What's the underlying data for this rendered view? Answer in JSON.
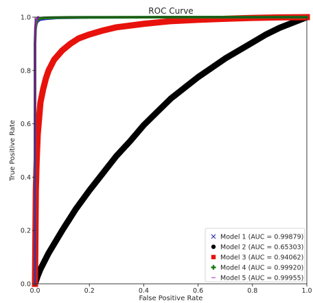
{
  "chart_data": {
    "type": "line",
    "title": "ROC Curve",
    "xlabel": "False Positive Rate",
    "ylabel": "True Positive Rate",
    "xlim": [
      0.0,
      1.0
    ],
    "ylim": [
      0.0,
      1.0
    ],
    "xticks": [
      "0.0",
      "0.2",
      "0.4",
      "0.6",
      "0.8",
      "1.0"
    ],
    "yticks": [
      "0.0",
      "0.2",
      "0.4",
      "0.6",
      "0.8",
      "1.0"
    ],
    "grid": false,
    "legend_position": "lower-right",
    "series": [
      {
        "name": "Model 1 (AUC = 0.99879)",
        "marker": "x",
        "color": "#2d2db8",
        "x": [
          0,
          0,
          0,
          0,
          0.002,
          0.005,
          0.008,
          0.012,
          0.02,
          0.04,
          0.08,
          0.2,
          0.5,
          1.0
        ],
        "y": [
          0,
          0.4,
          0.8,
          0.9,
          0.95,
          0.97,
          0.98,
          0.985,
          0.99,
          0.993,
          0.996,
          0.998,
          0.999,
          1.0
        ]
      },
      {
        "name": "Model 2 (AUC = 0.65303)",
        "marker": "circle",
        "color": "#000000",
        "x": [
          0,
          0.01,
          0.02,
          0.05,
          0.1,
          0.15,
          0.2,
          0.25,
          0.3,
          0.35,
          0.4,
          0.45,
          0.5,
          0.55,
          0.6,
          0.65,
          0.7,
          0.75,
          0.8,
          0.85,
          0.9,
          0.95,
          1.0
        ],
        "y": [
          0,
          0.03,
          0.055,
          0.115,
          0.2,
          0.28,
          0.35,
          0.415,
          0.48,
          0.535,
          0.595,
          0.645,
          0.695,
          0.735,
          0.775,
          0.81,
          0.845,
          0.875,
          0.905,
          0.935,
          0.96,
          0.98,
          1.0
        ]
      },
      {
        "name": "Model 3 (AUC = 0.94062)",
        "marker": "square",
        "color": "#e8120c",
        "x": [
          0,
          0.003,
          0.006,
          0.01,
          0.015,
          0.02,
          0.03,
          0.04,
          0.05,
          0.07,
          0.1,
          0.13,
          0.16,
          0.2,
          0.25,
          0.3,
          0.4,
          0.5,
          0.6,
          0.7,
          0.8,
          0.9,
          1.0
        ],
        "y": [
          0,
          0.35,
          0.46,
          0.56,
          0.62,
          0.68,
          0.73,
          0.77,
          0.8,
          0.84,
          0.875,
          0.9,
          0.92,
          0.935,
          0.95,
          0.962,
          0.975,
          0.985,
          0.99,
          0.994,
          0.997,
          0.999,
          1.0
        ]
      },
      {
        "name": "Model 4 (AUC = 0.99920)",
        "marker": "plus",
        "color": "#1c7a16",
        "x": [
          0,
          0,
          0,
          0,
          0.002,
          0.005,
          0.01,
          0.015,
          0.03,
          0.06,
          0.12,
          0.25,
          0.5,
          0.75,
          1.0
        ],
        "y": [
          0,
          0.3,
          0.7,
          0.9,
          0.96,
          0.98,
          0.99,
          0.995,
          0.997,
          0.998,
          0.999,
          0.9995,
          1.0,
          1.0,
          1.0
        ]
      },
      {
        "name": "Model 5 (AUC = 0.99955)",
        "marker": "dash",
        "color": "#9d1fc7",
        "x": [
          0,
          0,
          0,
          0,
          0.001,
          0.002,
          0.004,
          0.008,
          0.012
        ],
        "y": [
          0,
          0.25,
          0.55,
          0.85,
          0.95,
          0.975,
          0.99,
          0.997,
          1.0
        ]
      }
    ]
  }
}
